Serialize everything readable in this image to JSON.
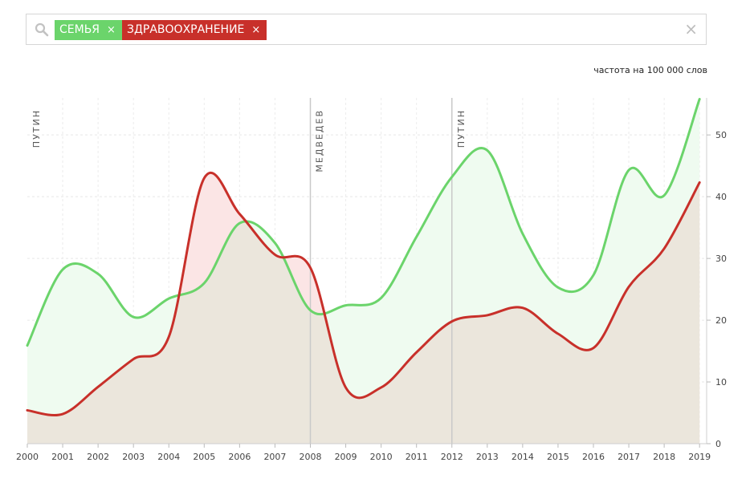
{
  "search": {
    "tags": [
      {
        "label": "СЕМЬЯ",
        "remove": "×",
        "color": "#6bd46b"
      },
      {
        "label": "ЗДРАВООХРАНЕНИЕ",
        "remove": "×",
        "color": "#c8302a"
      }
    ],
    "clear": "×"
  },
  "unit_label": "частота на 100 000 слов",
  "chart_data": {
    "type": "area",
    "x": [
      2000,
      2001,
      2002,
      2003,
      2004,
      2005,
      2006,
      2007,
      2008,
      2009,
      2010,
      2011,
      2012,
      2013,
      2014,
      2015,
      2016,
      2017,
      2018,
      2019
    ],
    "xlim": [
      2000,
      2019.2
    ],
    "ylim": [
      0,
      56
    ],
    "yticks": [
      0,
      10,
      20,
      30,
      40,
      50
    ],
    "grid": true,
    "series": [
      {
        "name": "СЕМЬЯ",
        "color": "#6bd46b",
        "values": [
          15.9,
          28.2,
          27.5,
          20.5,
          23.5,
          26.0,
          35.7,
          32.5,
          21.6,
          22.4,
          23.6,
          33.5,
          43.2,
          47.5,
          34.0,
          25.3,
          27.3,
          44.3,
          40.2,
          55.8
        ]
      },
      {
        "name": "ЗДРАВООХРАНЕНИЕ",
        "color": "#c8302a",
        "values": [
          5.4,
          4.8,
          9.2,
          13.7,
          17.3,
          43.0,
          37.2,
          30.6,
          28.5,
          9.1,
          9.1,
          14.8,
          19.8,
          20.8,
          22.0,
          17.8,
          15.5,
          25.4,
          31.6,
          42.3
        ]
      }
    ],
    "periods": [
      {
        "label": "ПУТИН",
        "x": 2000.0
      },
      {
        "label": "МЕДВЕДЕВ",
        "x": 2008.0
      },
      {
        "label": "ПУТИН",
        "x": 2012.0
      }
    ]
  }
}
